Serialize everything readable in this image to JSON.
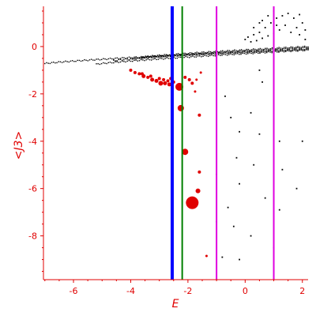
{
  "chart_data": {
    "type": "scatter",
    "xlabel": "E",
    "ylabel": "<J3>",
    "xlim": [
      -7.05,
      2.2
    ],
    "ylim": [
      -9.85,
      1.7
    ],
    "xticks": [
      -6,
      -4,
      -2,
      0,
      2
    ],
    "yticks": [
      0,
      -2,
      -4,
      -6,
      -8
    ],
    "x_tick_labels": [
      "-6",
      "-4",
      "-2",
      "0",
      "2"
    ],
    "y_tick_labels": [
      "0",
      "-2",
      "-4",
      "-6",
      "-8"
    ],
    "grid": false,
    "vertical_lines": [
      {
        "x": -2.55,
        "color": "#0000ff"
      },
      {
        "x": -2.2,
        "color": "#008000"
      },
      {
        "x": -1.0,
        "color": "#e000e0"
      },
      {
        "x": 1.0,
        "color": "#e000e0"
      }
    ],
    "series": [
      {
        "color": "#000000",
        "bands": [
          {
            "x_start": -7.0,
            "x_end": 2.2,
            "y_start": -0.72,
            "y_end": -0.1
          },
          {
            "x_start": -5.2,
            "x_end": 2.2,
            "y_start": -0.75,
            "y_end": -0.15
          },
          {
            "x_start": -4.6,
            "x_end": 2.2,
            "y_start": -0.6,
            "y_end": -0.05
          },
          {
            "x_start": -4.0,
            "x_end": 2.2,
            "y_start": -0.52,
            "y_end": -0.12
          },
          {
            "x_start": -3.6,
            "x_end": 2.2,
            "y_start": -0.45,
            "y_end": 0.0
          }
        ],
        "points": [
          [
            0.0,
            0.3
          ],
          [
            0.1,
            0.4
          ],
          [
            0.2,
            0.2
          ],
          [
            0.3,
            0.5
          ],
          [
            0.4,
            0.25
          ],
          [
            0.5,
            0.6
          ],
          [
            0.6,
            0.35
          ],
          [
            0.7,
            0.8
          ],
          [
            0.8,
            0.45
          ],
          [
            0.9,
            1.0
          ],
          [
            1.0,
            0.55
          ],
          [
            1.1,
            1.2
          ],
          [
            1.2,
            0.7
          ],
          [
            1.3,
            1.3
          ],
          [
            1.4,
            0.9
          ],
          [
            1.5,
            1.4
          ],
          [
            1.6,
            0.6
          ],
          [
            1.7,
            1.2
          ],
          [
            1.8,
            0.8
          ],
          [
            1.9,
            1.35
          ],
          [
            2.0,
            1.0
          ],
          [
            2.1,
            0.7
          ],
          [
            0.6,
            1.1
          ],
          [
            0.8,
            1.3
          ],
          [
            1.0,
            1.5
          ],
          [
            1.1,
            0.9
          ],
          [
            0.3,
            0.8
          ],
          [
            0.5,
            1.0
          ],
          [
            1.9,
            0.5
          ],
          [
            2.1,
            0.3
          ],
          [
            0.5,
            -1.0
          ],
          [
            0.6,
            -1.5
          ],
          [
            -0.7,
            -2.1
          ],
          [
            0.2,
            -2.8
          ],
          [
            -0.5,
            -3.0
          ],
          [
            -0.2,
            -3.6
          ],
          [
            0.5,
            -3.7
          ],
          [
            1.2,
            -4.0
          ],
          [
            2.0,
            -4.0
          ],
          [
            -0.3,
            -4.7
          ],
          [
            0.3,
            -5.0
          ],
          [
            1.3,
            -5.2
          ],
          [
            -1.0,
            -5.4
          ],
          [
            -0.2,
            -5.8
          ],
          [
            1.8,
            -6.0
          ],
          [
            0.7,
            -6.4
          ],
          [
            -0.6,
            -6.8
          ],
          [
            1.2,
            -6.9
          ],
          [
            -1.0,
            -7.4
          ],
          [
            -0.4,
            -7.6
          ],
          [
            0.2,
            -8.0
          ],
          [
            1.0,
            -8.5
          ],
          [
            -0.8,
            -8.9
          ],
          [
            -0.2,
            -9.0
          ]
        ]
      },
      {
        "color": "#e00000",
        "points": [
          [
            -4.0,
            -1.0,
            2
          ],
          [
            -3.85,
            -1.1,
            2
          ],
          [
            -3.7,
            -1.15,
            2
          ],
          [
            -3.55,
            -1.25,
            2.5
          ],
          [
            -3.4,
            -1.3,
            2
          ],
          [
            -3.25,
            -1.4,
            2.5
          ],
          [
            -3.1,
            -1.45,
            2.5
          ],
          [
            -2.95,
            -1.55,
            3
          ],
          [
            -2.8,
            -1.55,
            2.5
          ],
          [
            -2.65,
            -1.6,
            2.5
          ],
          [
            -3.6,
            -1.15,
            2
          ],
          [
            -3.3,
            -1.25,
            2
          ],
          [
            -3.0,
            -1.35,
            2
          ],
          [
            -2.85,
            -1.4,
            2
          ],
          [
            -2.7,
            -1.45,
            2
          ],
          [
            -2.6,
            -1.35,
            2
          ],
          [
            -2.5,
            -1.5,
            2
          ],
          [
            -2.3,
            -1.7,
            5
          ],
          [
            -2.1,
            -1.3,
            2
          ],
          [
            -1.95,
            -1.4,
            2
          ],
          [
            -1.85,
            -1.55,
            2
          ],
          [
            -1.7,
            -1.4,
            1.5
          ],
          [
            -1.55,
            -1.1,
            1.5
          ],
          [
            -2.25,
            -2.6,
            4
          ],
          [
            -2.1,
            -4.45,
            4
          ],
          [
            -1.75,
            -1.9,
            1.5
          ],
          [
            -1.6,
            -2.9,
            2
          ],
          [
            -1.6,
            -5.3,
            2
          ],
          [
            -1.65,
            -6.1,
            3
          ],
          [
            -1.85,
            -6.6,
            8
          ],
          [
            -1.35,
            -8.85,
            1.5
          ]
        ]
      }
    ]
  }
}
